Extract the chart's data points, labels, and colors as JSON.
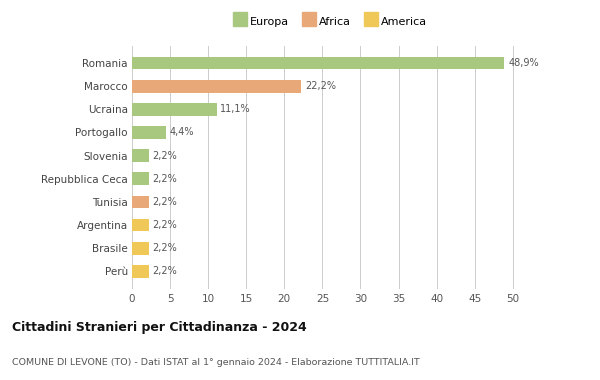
{
  "countries": [
    "Romania",
    "Marocco",
    "Ucraina",
    "Portogallo",
    "Slovenia",
    "Repubblica Ceca",
    "Tunisia",
    "Argentina",
    "Brasile",
    "Perù"
  ],
  "values": [
    48.9,
    22.2,
    11.1,
    4.4,
    2.2,
    2.2,
    2.2,
    2.2,
    2.2,
    2.2
  ],
  "labels": [
    "48,9%",
    "22,2%",
    "11,1%",
    "4,4%",
    "2,2%",
    "2,2%",
    "2,2%",
    "2,2%",
    "2,2%",
    "2,2%"
  ],
  "colors": [
    "#a8c880",
    "#e8a878",
    "#a8c880",
    "#a8c880",
    "#a8c880",
    "#a8c880",
    "#e8a878",
    "#f0c858",
    "#f0c858",
    "#f0c858"
  ],
  "legend_labels": [
    "Europa",
    "Africa",
    "America"
  ],
  "legend_colors": [
    "#a8c880",
    "#e8a878",
    "#f0c858"
  ],
  "xlim": [
    0,
    52
  ],
  "xticks": [
    0,
    5,
    10,
    15,
    20,
    25,
    30,
    35,
    40,
    45,
    50
  ],
  "title": "Cittadini Stranieri per Cittadinanza - 2024",
  "subtitle": "COMUNE DI LEVONE (TO) - Dati ISTAT al 1° gennaio 2024 - Elaborazione TUTTITALIA.IT",
  "bg_color": "#ffffff",
  "grid_color": "#cccccc",
  "bar_height": 0.55
}
